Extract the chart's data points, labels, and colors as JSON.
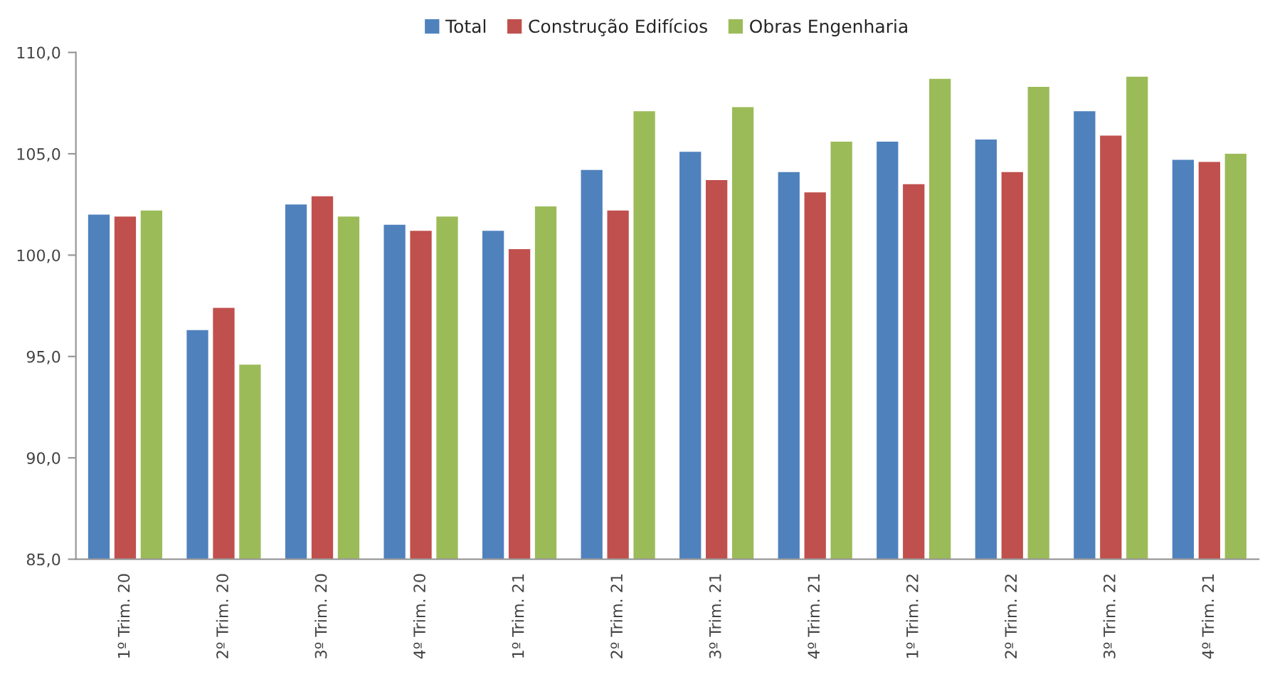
{
  "chart_data": {
    "type": "bar",
    "categories": [
      "1º Trim. 20",
      "2º Trim. 20",
      "3º Trim. 20",
      "4º Trim. 20",
      "1º Trim. 21",
      "2º Trim. 21",
      "3º Trim. 21",
      "4º Trim. 21",
      "1º Trim. 22",
      "2º Trim. 22",
      "3º Trim. 22",
      "4º Trim. 21"
    ],
    "series": [
      {
        "name": "Total",
        "color": "#4f81bd",
        "values": [
          102.0,
          96.3,
          102.5,
          101.5,
          101.2,
          104.2,
          105.1,
          104.1,
          105.6,
          105.7,
          107.1,
          104.7
        ]
      },
      {
        "name": "Construção Edifícios",
        "color": "#c0504d",
        "values": [
          101.9,
          97.4,
          102.9,
          101.2,
          100.3,
          102.2,
          103.7,
          103.1,
          103.5,
          104.1,
          105.9,
          104.6
        ]
      },
      {
        "name": "Obras Engenharia",
        "color": "#9bbb59",
        "values": [
          102.2,
          94.6,
          101.9,
          101.9,
          102.4,
          107.1,
          107.3,
          105.6,
          108.7,
          108.3,
          108.8,
          105.0
        ]
      }
    ],
    "ylim": [
      85,
      110
    ],
    "yticks": [
      {
        "value": 85,
        "label": "85,0"
      },
      {
        "value": 90,
        "label": "90,0"
      },
      {
        "value": 95,
        "label": "95,0"
      },
      {
        "value": 100,
        "label": "100,0"
      },
      {
        "value": 105,
        "label": "105,0"
      },
      {
        "value": 110,
        "label": "110,0"
      }
    ],
    "grid": false,
    "legend": "top"
  }
}
